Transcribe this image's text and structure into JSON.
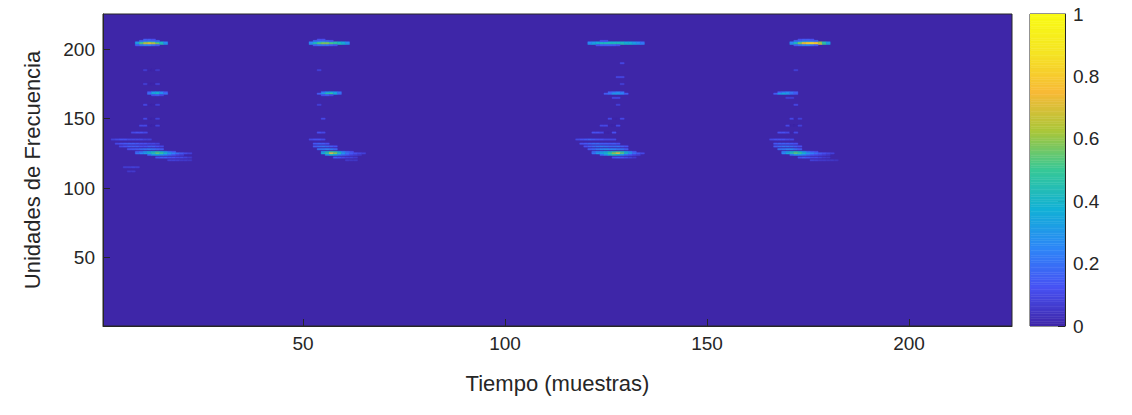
{
  "chart_data": {
    "type": "heatmap",
    "xlabel": "Tiempo (muestras)",
    "ylabel": "Unidades de Frecuencia",
    "xlim": [
      0.5,
      225.5
    ],
    "ylim": [
      0.5,
      225.5
    ],
    "xticks": [
      50,
      100,
      150,
      200
    ],
    "yticks": [
      50,
      100,
      150,
      200
    ],
    "colorbar": {
      "range": [
        0,
        1
      ],
      "ticks": [
        0,
        0.2,
        0.4,
        0.6,
        0.8,
        1
      ]
    },
    "cells": [
      {
        "frequency": 204,
        "start": 9,
        "values": [
          0.35,
          0.55,
          0.7,
          0.75,
          0.7,
          0.6,
          0.45,
          0.3
        ]
      },
      {
        "frequency": 205,
        "start": 9,
        "values": [
          0.3,
          0.5,
          0.6,
          0.65,
          0.6,
          0.5,
          0.4,
          0.25
        ]
      },
      {
        "frequency": 206,
        "start": 10,
        "values": [
          0.2,
          0.25,
          0.3,
          0.25,
          0.2
        ]
      },
      {
        "frequency": 207,
        "start": 11,
        "values": [
          0.15,
          0.15,
          0.12
        ]
      },
      {
        "frequency": 203,
        "start": 9,
        "values": [
          0.15,
          0.2,
          0.25,
          0.25,
          0.2,
          0.15
        ]
      },
      {
        "frequency": 169,
        "start": 12,
        "values": [
          0.15,
          0.3,
          0.35,
          0.25,
          0.15
        ]
      },
      {
        "frequency": 168,
        "start": 12,
        "values": [
          0.2,
          0.35,
          0.4,
          0.3,
          0.2
        ]
      },
      {
        "frequency": 167,
        "start": 13,
        "values": [
          0.12,
          0.15,
          0.1
        ]
      },
      {
        "frequency": 185,
        "start": 11,
        "values": [
          0.07,
          0,
          0,
          0.06
        ]
      },
      {
        "frequency": 175,
        "start": 11,
        "values": [
          0.08,
          0,
          0,
          0.08
        ]
      },
      {
        "frequency": 160,
        "start": 11,
        "values": [
          0.1,
          0,
          0,
          0.08
        ]
      },
      {
        "frequency": 150,
        "start": 11,
        "values": [
          0.1,
          0,
          0,
          0.08
        ]
      },
      {
        "frequency": 145,
        "start": 10,
        "values": [
          0.1,
          0.1,
          0,
          0,
          0.08
        ]
      },
      {
        "frequency": 140,
        "start": 8,
        "values": [
          0.1,
          0.12,
          0.12,
          0.1
        ]
      },
      {
        "frequency": 135,
        "start": 3,
        "values": [
          0.08,
          0.1,
          0.12,
          0.12,
          0.1,
          0.1,
          0.1,
          0.1,
          0.08,
          0.08
        ]
      },
      {
        "frequency": 132,
        "start": 4,
        "values": [
          0.1,
          0.12,
          0.14,
          0.15,
          0.15,
          0.14,
          0.12,
          0.12,
          0.1,
          0.1,
          0.08
        ]
      },
      {
        "frequency": 130,
        "start": 5,
        "values": [
          0.1,
          0.12,
          0.15,
          0.15,
          0.15,
          0.12,
          0.12,
          0.15,
          0.15,
          0.12,
          0.1
        ]
      },
      {
        "frequency": 128,
        "start": 7,
        "values": [
          0.12,
          0.14,
          0.15,
          0.18,
          0.2,
          0.22,
          0.2,
          0.18,
          0.15
        ]
      },
      {
        "frequency": 126,
        "start": 9,
        "values": [
          0.15,
          0.2,
          0.3,
          0.35,
          0.4,
          0.45,
          0.4,
          0.3,
          0.2,
          0.15
        ]
      },
      {
        "frequency": 125,
        "start": 9,
        "values": [
          0.2,
          0.25,
          0.3,
          0.4,
          0.45,
          0.55,
          0.5,
          0.4,
          0.3,
          0.25,
          0.2,
          0.15,
          0.1,
          0.08
        ]
      },
      {
        "frequency": 124,
        "start": 12,
        "values": [
          0.2,
          0.3,
          0.35,
          0.3,
          0.25,
          0.2,
          0.15,
          0.1,
          0.08
        ]
      },
      {
        "frequency": 122,
        "start": 14,
        "values": [
          0.12,
          0.15,
          0.15,
          0.12,
          0.12,
          0.1,
          0.1,
          0.08,
          0.06
        ]
      },
      {
        "frequency": 120,
        "start": 17,
        "values": [
          0.08,
          0.08,
          0.07,
          0.06,
          0.06,
          0.05
        ]
      },
      {
        "frequency": 115,
        "start": 6,
        "values": [
          0.07,
          0.07,
          0.08,
          0.07
        ]
      },
      {
        "frequency": 112,
        "start": 7,
        "values": [
          0.06,
          0.06
        ]
      },
      {
        "frequency": 204,
        "start": 52,
        "values": [
          0.3,
          0.45,
          0.55,
          0.6,
          0.6,
          0.55,
          0.5,
          0.45,
          0.4,
          0.3
        ]
      },
      {
        "frequency": 205,
        "start": 52,
        "values": [
          0.25,
          0.4,
          0.5,
          0.55,
          0.55,
          0.5,
          0.45,
          0.4,
          0.35,
          0.25
        ]
      },
      {
        "frequency": 206,
        "start": 53,
        "values": [
          0.2,
          0.25,
          0.25,
          0.2,
          0.15
        ]
      },
      {
        "frequency": 207,
        "start": 54,
        "values": [
          0.12,
          0.12
        ]
      },
      {
        "frequency": 203,
        "start": 53,
        "values": [
          0.15,
          0.2,
          0.2,
          0.2,
          0.15,
          0.12
        ]
      },
      {
        "frequency": 169,
        "start": 55,
        "values": [
          0.2,
          0.3,
          0.35,
          0.3,
          0.2
        ]
      },
      {
        "frequency": 168,
        "start": 54,
        "values": [
          0.15,
          0.3,
          0.45,
          0.5,
          0.35,
          0.2
        ]
      },
      {
        "frequency": 167,
        "start": 55,
        "values": [
          0.12,
          0.15,
          0.1
        ]
      },
      {
        "frequency": 185,
        "start": 54,
        "values": [
          0.08
        ]
      },
      {
        "frequency": 160,
        "start": 54,
        "values": [
          0.08
        ]
      },
      {
        "frequency": 150,
        "start": 55,
        "values": [
          0.1
        ]
      },
      {
        "frequency": 140,
        "start": 54,
        "values": [
          0.12,
          0.1
        ]
      },
      {
        "frequency": 135,
        "start": 52,
        "values": [
          0.1,
          0.12,
          0.12,
          0.1
        ]
      },
      {
        "frequency": 132,
        "start": 53,
        "values": [
          0.14,
          0.16,
          0.15,
          0.12
        ]
      },
      {
        "frequency": 130,
        "start": 53,
        "values": [
          0.15,
          0.18,
          0.2,
          0.18,
          0.15,
          0.12
        ]
      },
      {
        "frequency": 128,
        "start": 54,
        "values": [
          0.2,
          0.22,
          0.25,
          0.22,
          0.18
        ]
      },
      {
        "frequency": 126,
        "start": 55,
        "values": [
          0.3,
          0.4,
          0.5,
          0.45,
          0.35,
          0.25,
          0.18,
          0.12
        ]
      },
      {
        "frequency": 125,
        "start": 55,
        "values": [
          0.35,
          0.5,
          0.75,
          0.6,
          0.45,
          0.3,
          0.2,
          0.15,
          0.12,
          0.1,
          0.08
        ]
      },
      {
        "frequency": 124,
        "start": 56,
        "values": [
          0.3,
          0.4,
          0.35,
          0.25,
          0.2,
          0.15,
          0.1,
          0.08,
          0.06
        ]
      },
      {
        "frequency": 122,
        "start": 58,
        "values": [
          0.15,
          0.12,
          0.1,
          0.08,
          0.08,
          0.06
        ]
      },
      {
        "frequency": 120,
        "start": 61,
        "values": [
          0.06,
          0.05,
          0.05
        ]
      },
      {
        "frequency": 204,
        "start": 121,
        "values": [
          0.3,
          0.35,
          0.4,
          0.45,
          0.45,
          0.45,
          0.45,
          0.45,
          0.45,
          0.4,
          0.4,
          0.35,
          0.3,
          0.25
        ]
      },
      {
        "frequency": 205,
        "start": 121,
        "values": [
          0.25,
          0.3,
          0.35,
          0.4,
          0.4,
          0.4,
          0.4,
          0.4,
          0.4,
          0.35,
          0.35,
          0.3,
          0.25,
          0.2
        ]
      },
      {
        "frequency": 203,
        "start": 123,
        "values": [
          0.12,
          0.15,
          0.15,
          0.15,
          0.15,
          0.12
        ]
      },
      {
        "frequency": 206,
        "start": 124,
        "values": [
          0.12,
          0.12
        ]
      },
      {
        "frequency": 190,
        "start": 129,
        "values": [
          0.1
        ]
      },
      {
        "frequency": 180,
        "start": 128,
        "values": [
          0.1,
          0.1
        ]
      },
      {
        "frequency": 175,
        "start": 129,
        "values": [
          0.08
        ]
      },
      {
        "frequency": 169,
        "start": 126,
        "values": [
          0.15,
          0.2,
          0.25,
          0.2
        ]
      },
      {
        "frequency": 168,
        "start": 125,
        "values": [
          0.15,
          0.2,
          0.3,
          0.3,
          0.25,
          0.15
        ]
      },
      {
        "frequency": 165,
        "start": 127,
        "values": [
          0.1,
          0.1
        ]
      },
      {
        "frequency": 160,
        "start": 128,
        "values": [
          0.08
        ]
      },
      {
        "frequency": 150,
        "start": 126,
        "values": [
          0.1,
          0,
          0,
          0.1
        ]
      },
      {
        "frequency": 145,
        "start": 124,
        "values": [
          0.1,
          0.1,
          0,
          0,
          0.1
        ]
      },
      {
        "frequency": 140,
        "start": 122,
        "values": [
          0.12,
          0.12,
          0.1,
          0,
          0,
          0.12
        ]
      },
      {
        "frequency": 135,
        "start": 118,
        "values": [
          0.1,
          0.12,
          0.14,
          0.15,
          0.14,
          0.12,
          0.12,
          0.1,
          0.1,
          0.1
        ]
      },
      {
        "frequency": 132,
        "start": 119,
        "values": [
          0.12,
          0.14,
          0.16,
          0.18,
          0.18,
          0.15,
          0.15,
          0.14,
          0.15,
          0.12
        ]
      },
      {
        "frequency": 130,
        "start": 120,
        "values": [
          0.12,
          0.15,
          0.18,
          0.2,
          0.22,
          0.2,
          0.18,
          0.18,
          0.2,
          0.15,
          0.12
        ]
      },
      {
        "frequency": 128,
        "start": 121,
        "values": [
          0.15,
          0.18,
          0.22,
          0.25,
          0.28,
          0.25,
          0.25,
          0.22,
          0.2,
          0.15
        ]
      },
      {
        "frequency": 126,
        "start": 122,
        "values": [
          0.2,
          0.25,
          0.3,
          0.35,
          0.4,
          0.45,
          0.5,
          0.45,
          0.35,
          0.25,
          0.15
        ]
      },
      {
        "frequency": 125,
        "start": 122,
        "values": [
          0.2,
          0.3,
          0.35,
          0.4,
          0.5,
          0.6,
          0.75,
          0.55,
          0.4,
          0.3,
          0.2,
          0.15,
          0.1
        ]
      },
      {
        "frequency": 124,
        "start": 124,
        "values": [
          0.2,
          0.3,
          0.4,
          0.45,
          0.4,
          0.3,
          0.2,
          0.15,
          0.1,
          0.08
        ]
      },
      {
        "frequency": 122,
        "start": 127,
        "values": [
          0.12,
          0.15,
          0.12,
          0.1,
          0.08,
          0.06
        ]
      },
      {
        "frequency": 204,
        "start": 171,
        "values": [
          0.3,
          0.45,
          0.6,
          0.75,
          0.85,
          0.9,
          0.85,
          0.7,
          0.5,
          0.35
        ]
      },
      {
        "frequency": 205,
        "start": 171,
        "values": [
          0.25,
          0.4,
          0.55,
          0.7,
          0.75,
          0.8,
          0.75,
          0.6,
          0.45,
          0.3
        ]
      },
      {
        "frequency": 206,
        "start": 172,
        "values": [
          0.2,
          0.25,
          0.3,
          0.3,
          0.25,
          0.2
        ]
      },
      {
        "frequency": 207,
        "start": 173,
        "values": [
          0.12,
          0.15,
          0.15,
          0.12
        ]
      },
      {
        "frequency": 203,
        "start": 172,
        "values": [
          0.15,
          0.2,
          0.25,
          0.25,
          0.2,
          0.15
        ]
      },
      {
        "frequency": 169,
        "start": 168,
        "values": [
          0.15,
          0.2,
          0.25,
          0.2,
          0.15
        ]
      },
      {
        "frequency": 168,
        "start": 167,
        "values": [
          0.15,
          0.3,
          0.35,
          0.3,
          0.2,
          0.15
        ]
      },
      {
        "frequency": 165,
        "start": 170,
        "values": [
          0.08,
          0.08
        ]
      },
      {
        "frequency": 185,
        "start": 172,
        "values": [
          0.08
        ]
      },
      {
        "frequency": 160,
        "start": 172,
        "values": [
          0.1
        ]
      },
      {
        "frequency": 150,
        "start": 171,
        "values": [
          0.1,
          0,
          0.08
        ]
      },
      {
        "frequency": 145,
        "start": 170,
        "values": [
          0.1,
          0,
          0,
          0.08
        ]
      },
      {
        "frequency": 140,
        "start": 168,
        "values": [
          0.12,
          0.12,
          0.1,
          0,
          0.1
        ]
      },
      {
        "frequency": 135,
        "start": 166,
        "values": [
          0.1,
          0.12,
          0.12,
          0.12,
          0.1,
          0.1
        ]
      },
      {
        "frequency": 132,
        "start": 167,
        "values": [
          0.14,
          0.16,
          0.16,
          0.15,
          0.14,
          0.12
        ]
      },
      {
        "frequency": 130,
        "start": 167,
        "values": [
          0.15,
          0.18,
          0.2,
          0.2,
          0.18,
          0.15,
          0.12
        ]
      },
      {
        "frequency": 128,
        "start": 168,
        "values": [
          0.2,
          0.22,
          0.25,
          0.25,
          0.2,
          0.15
        ]
      },
      {
        "frequency": 126,
        "start": 169,
        "values": [
          0.25,
          0.3,
          0.4,
          0.45,
          0.4,
          0.3,
          0.2,
          0.15,
          0.12
        ]
      },
      {
        "frequency": 125,
        "start": 169,
        "values": [
          0.25,
          0.35,
          0.45,
          0.55,
          0.5,
          0.4,
          0.3,
          0.25,
          0.2,
          0.15,
          0.12,
          0.1,
          0.08
        ]
      },
      {
        "frequency": 124,
        "start": 171,
        "values": [
          0.2,
          0.3,
          0.3,
          0.25,
          0.2,
          0.15,
          0.12,
          0.1,
          0.08,
          0.06
        ]
      },
      {
        "frequency": 122,
        "start": 173,
        "values": [
          0.12,
          0.15,
          0.12,
          0.1,
          0.1,
          0.08,
          0.06,
          0.05
        ]
      },
      {
        "frequency": 120,
        "start": 176,
        "values": [
          0.08,
          0.07,
          0.06,
          0.06,
          0.05,
          0.05,
          0.04
        ]
      }
    ]
  }
}
